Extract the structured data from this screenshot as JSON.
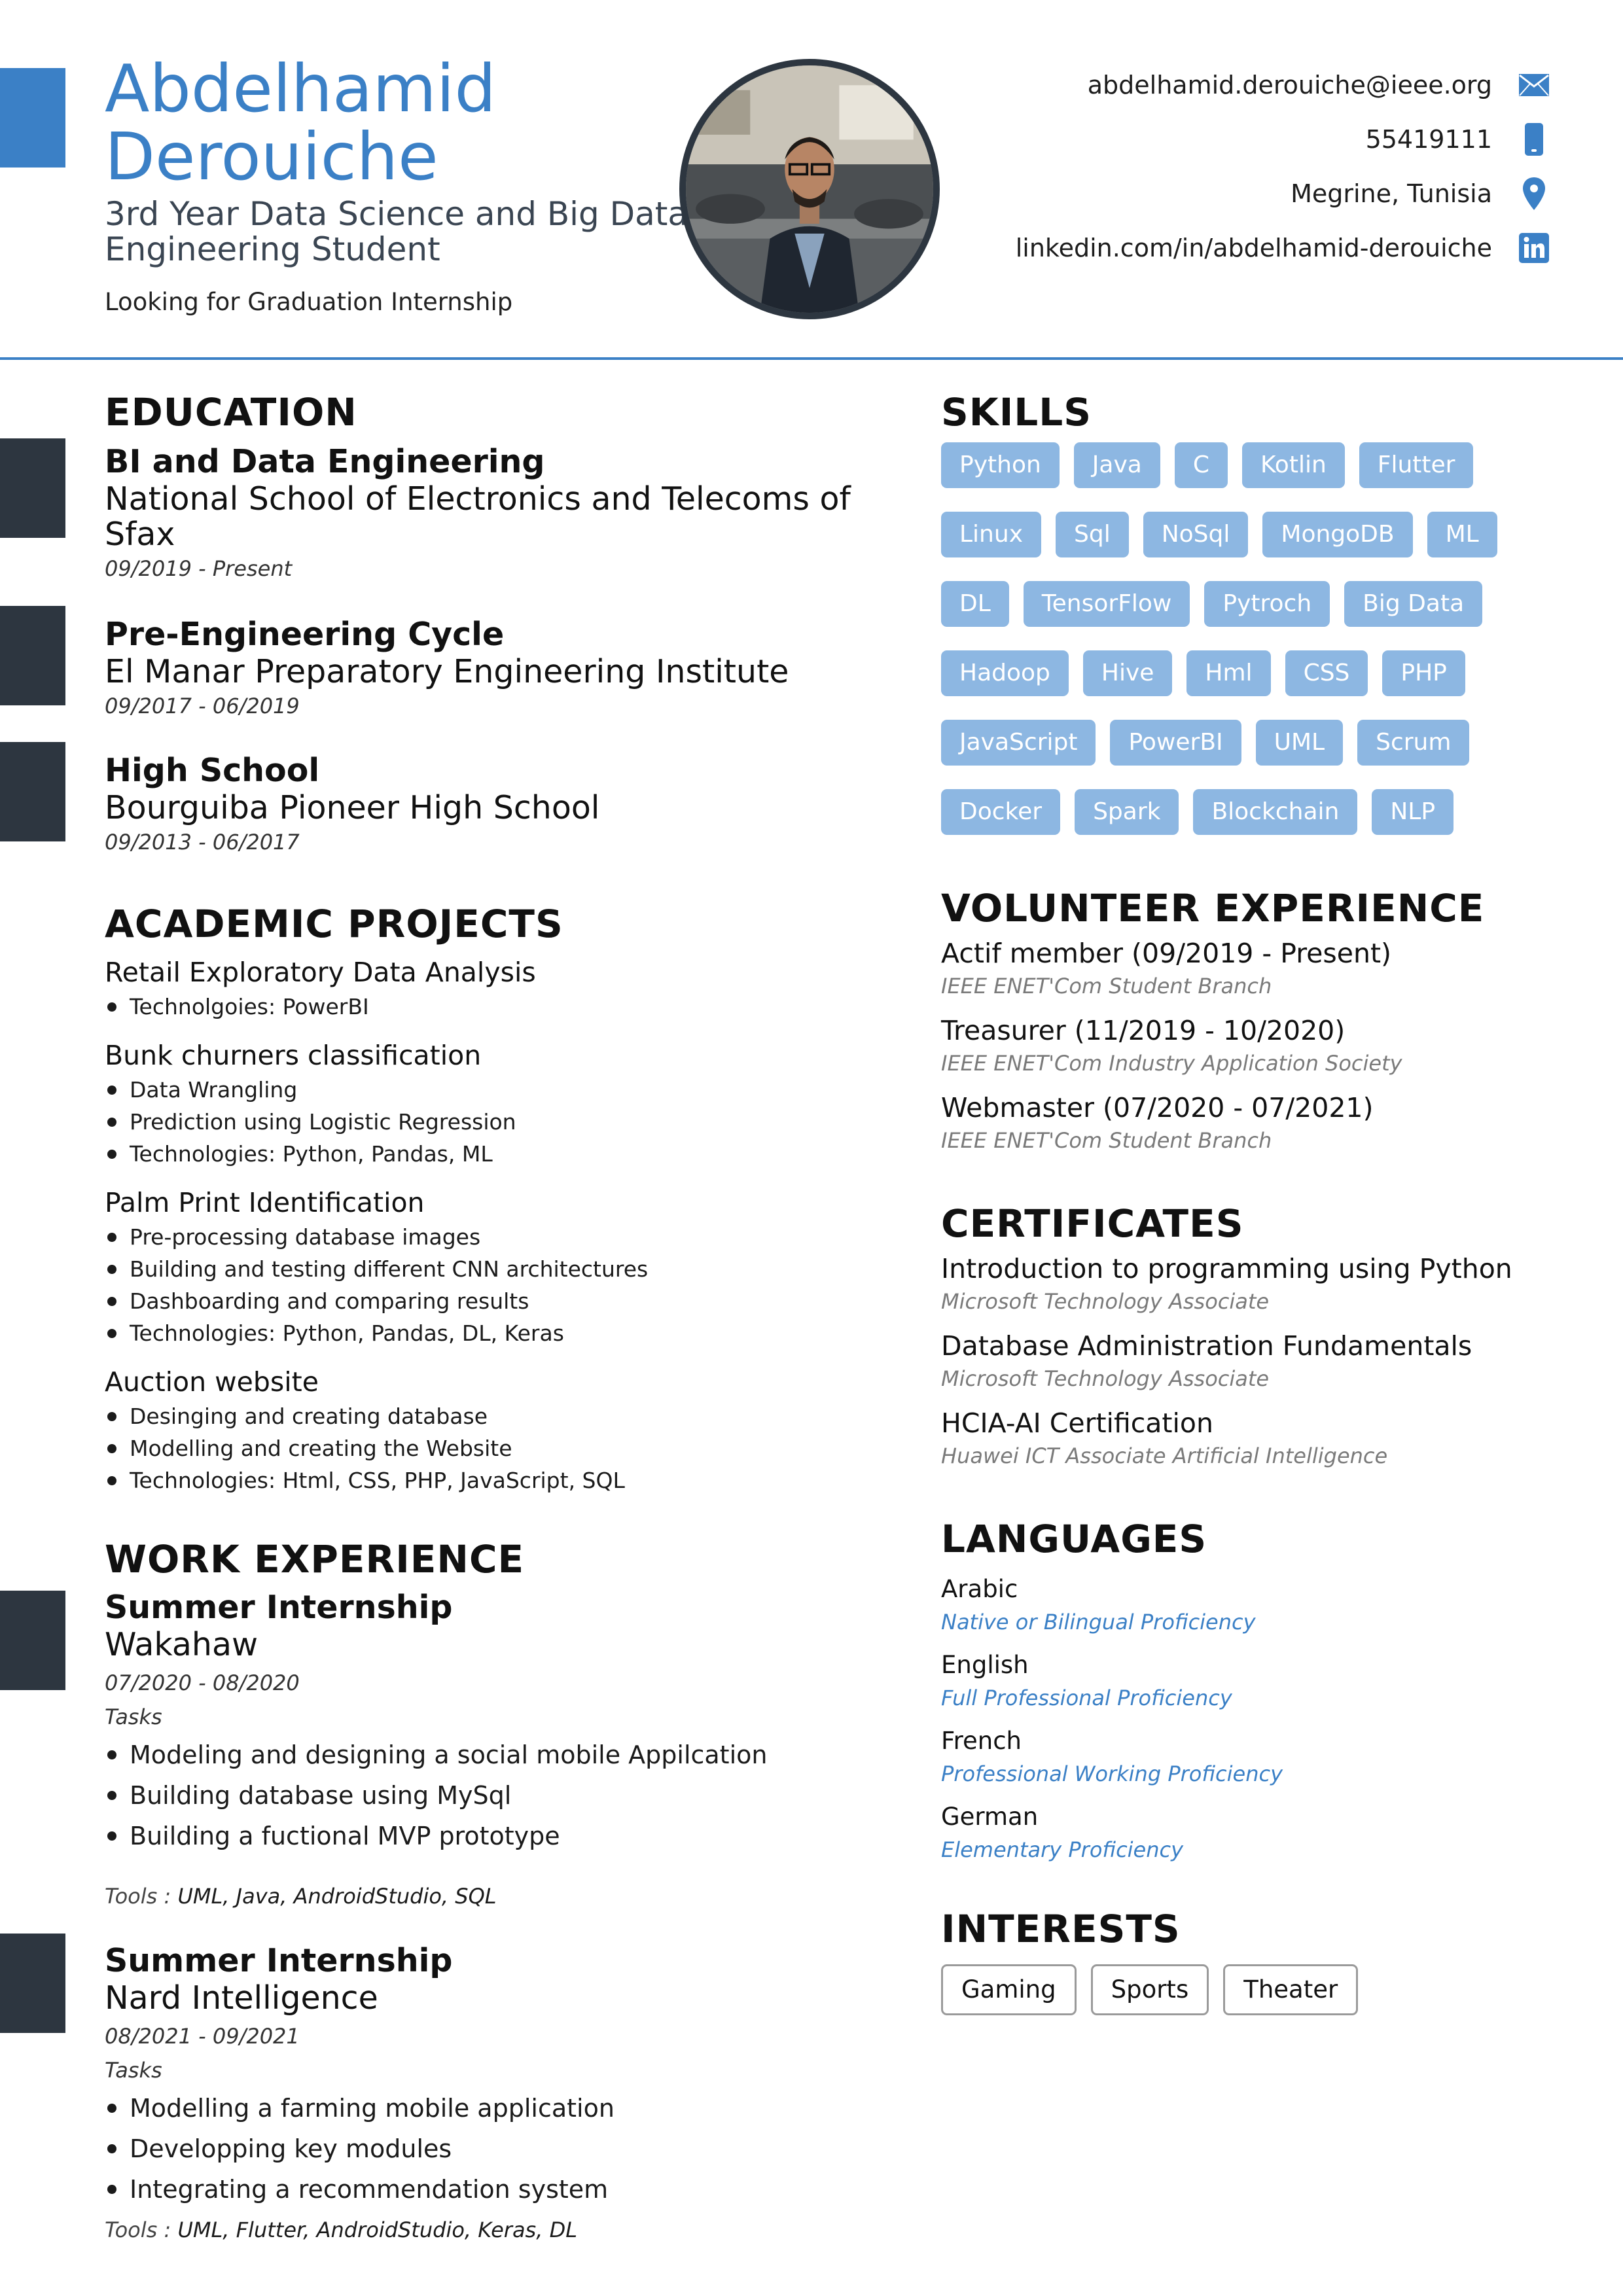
{
  "header": {
    "first_name": "Abdelhamid",
    "last_name": "Derouiche",
    "subtitle_line1": "3rd Year Data Science and Big Data",
    "subtitle_line2": "Engineering Student",
    "tagline": "Looking for Graduation Internship"
  },
  "contacts": [
    {
      "text": "abdelhamid.derouiche@ieee.org",
      "icon": "email-icon"
    },
    {
      "text": "55419111",
      "icon": "phone-icon"
    },
    {
      "text": "Megrine, Tunisia",
      "icon": "location-pin-icon"
    },
    {
      "text": "linkedin.com/in/abdelhamid-derouiche",
      "icon": "linkedin-icon"
    }
  ],
  "colors": {
    "accent": "#3b80c6",
    "dark": "#2d3640",
    "skill_tag": "#8db7e2"
  },
  "education": {
    "title": "EDUCATION",
    "entries": [
      {
        "degree": "BI and Data Engineering",
        "school_line1": "National School of Electronics and Telecoms of",
        "school_line2": "Sfax",
        "dates": "09/2019 - Present"
      },
      {
        "degree": "Pre-Engineering Cycle",
        "school_line1": "El Manar Preparatory Engineering Institute",
        "school_line2": "",
        "dates": "09/2017 - 06/2019"
      },
      {
        "degree": "High School",
        "school_line1": "Bourguiba Pioneer High School",
        "school_line2": "",
        "dates": "09/2013 - 06/2017"
      }
    ]
  },
  "projects": {
    "title": "ACADEMIC PROJECTS",
    "items": [
      {
        "name": "Retail Exploratory Data Analysis",
        "bullets": [
          "Technolgoies: PowerBI"
        ]
      },
      {
        "name": "Bunk churners classification",
        "bullets": [
          "Data Wrangling",
          "Prediction using Logistic Regression",
          "Technologies: Python, Pandas, ML"
        ]
      },
      {
        "name": "Palm Print Identification",
        "bullets": [
          "Pre-processing database images",
          "Building and testing different CNN architectures",
          "Dashboarding and comparing results",
          "Technologies: Python, Pandas, DL, Keras"
        ]
      },
      {
        "name": "Auction website",
        "bullets": [
          "Desinging and creating database",
          "Modelling and creating the Website",
          "Technologies: Html, CSS, PHP, JavaScript, SQL"
        ]
      }
    ]
  },
  "work": {
    "title": "WORK EXPERIENCE",
    "tasks_label": "Tasks",
    "tools_label": "Tools :",
    "jobs": [
      {
        "title": "Summer Internship",
        "company": "Wakahaw",
        "dates": "07/2020 - 08/2020",
        "tasks": [
          "Modeling and designing a social mobile Appilcation",
          "Building database using MySql",
          "Building a fuctional MVP prototype"
        ],
        "tools": "UML, Java, AndroidStudio, SQL"
      },
      {
        "title": "Summer Internship",
        "company": "Nard Intelligence",
        "dates": "08/2021 - 09/2021",
        "tasks": [
          "Modelling a farming mobile application",
          "Developping key modules",
          "Integrating a recommendation system"
        ],
        "tools": "UML, Flutter, AndroidStudio, Keras, DL"
      }
    ]
  },
  "skills": {
    "title": "SKILLS",
    "rows": [
      [
        "Python",
        "Java",
        "C",
        "Kotlin",
        "Flutter"
      ],
      [
        "Linux",
        "Sql",
        "NoSql",
        "MongoDB",
        "ML"
      ],
      [
        "DL",
        "TensorFlow",
        "Pytroch",
        "Big Data"
      ],
      [
        "Hadoop",
        "Hive",
        "Hml",
        "CSS",
        "PHP"
      ],
      [
        "JavaScript",
        "PowerBI",
        "UML",
        "Scrum"
      ],
      [
        "Docker",
        "Spark",
        "Blockchain",
        "NLP"
      ]
    ]
  },
  "volunteer": {
    "title": "VOLUNTEER EXPERIENCE",
    "items": [
      {
        "role": "Actif member (09/2019 - Present)",
        "org": "IEEE ENET'Com Student Branch"
      },
      {
        "role": "Treasurer (11/2019 - 10/2020)",
        "org": "IEEE ENET'Com Industry Application Society"
      },
      {
        "role": "Webmaster (07/2020 - 07/2021)",
        "org": "IEEE ENET'Com Student Branch"
      }
    ]
  },
  "certificates": {
    "title": "CERTIFICATES",
    "items": [
      {
        "name": "Introduction to programming using Python",
        "org": "Microsoft Technology Associate"
      },
      {
        "name": "Database Administration Fundamentals",
        "org": "Microsoft Technology Associate"
      },
      {
        "name": "HCIA-AI Certification",
        "org": "Huawei ICT Associate Artificial Intelligence"
      }
    ]
  },
  "languages": {
    "title": "LANGUAGES",
    "items": [
      {
        "name": "Arabic",
        "level": "Native or Bilingual Proficiency"
      },
      {
        "name": "English",
        "level": "Full Professional Proficiency"
      },
      {
        "name": "French",
        "level": "Professional Working Proficiency"
      },
      {
        "name": "German",
        "level": "Elementary Proficiency"
      }
    ]
  },
  "interests": {
    "title": "INTERESTS",
    "items": [
      "Gaming",
      "Sports",
      "Theater"
    ]
  }
}
